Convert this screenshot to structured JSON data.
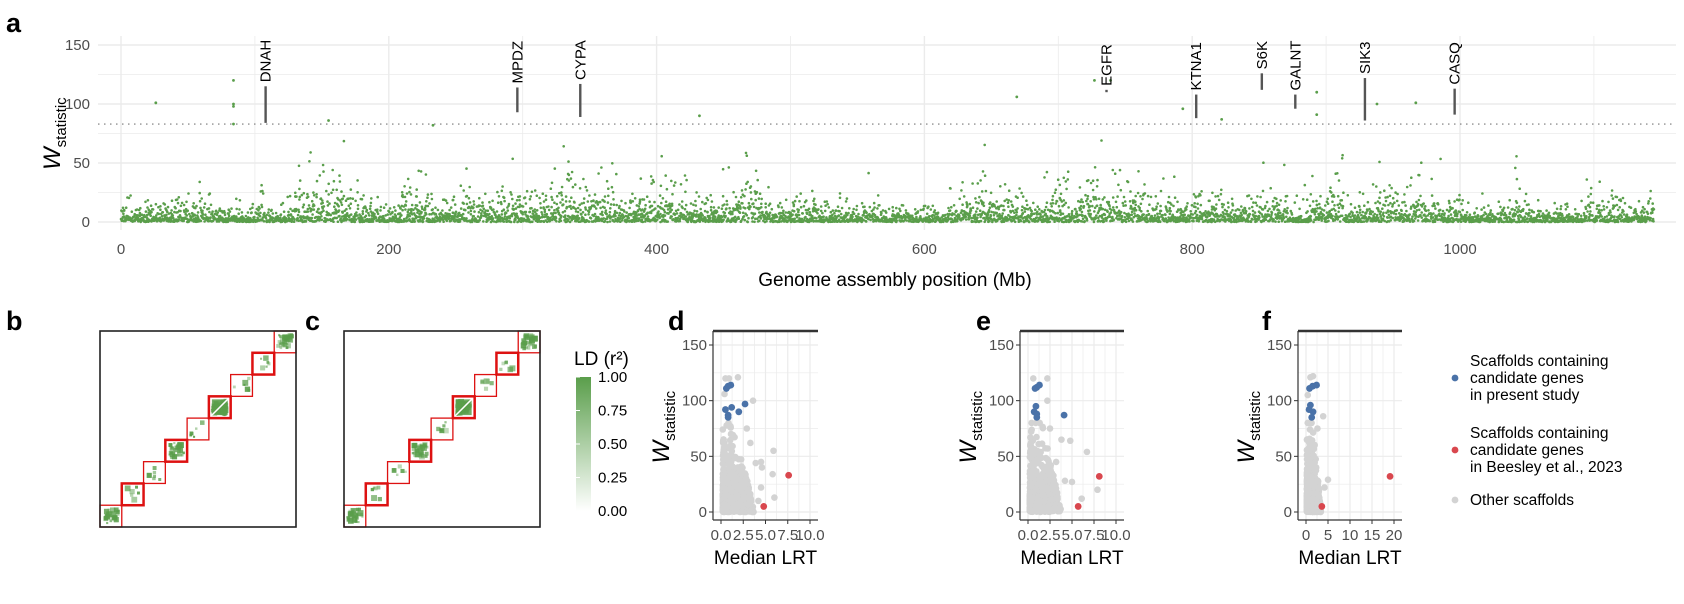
{
  "panel_labels": [
    "a",
    "b",
    "c",
    "d",
    "e",
    "f"
  ],
  "colors": {
    "manhattan": "#5a9e4b",
    "present_study": "#4a72a8",
    "beesley": "#d9474e",
    "other": "#d3d3d3",
    "grid": "#ebebeb",
    "block_border": "#dd1111",
    "ld_high": "#5a9e4b",
    "ld_low": "#ffffff"
  },
  "chart_data": [
    {
      "panel": "a",
      "type": "scatter",
      "xlabel": "Genome assembly position (Mb)",
      "ylabel_main": "W",
      "ylabel_sub": "statistic",
      "xlim": [
        0,
        1145
      ],
      "ylim": [
        0,
        150
      ],
      "xticks": [
        "0",
        "200",
        "400",
        "600",
        "800",
        "1000"
      ],
      "yticks": [
        "0",
        "50",
        "100",
        "150"
      ],
      "threshold": 83,
      "grid": true,
      "bulk_note_free": true,
      "high_points": [
        [
          26,
          101
        ],
        [
          84,
          120
        ],
        [
          84,
          100
        ],
        [
          84,
          98
        ],
        [
          84,
          83
        ],
        [
          155,
          86
        ],
        [
          233,
          82
        ],
        [
          432,
          90
        ],
        [
          669,
          106
        ],
        [
          727,
          120
        ],
        [
          739,
          120
        ],
        [
          793,
          96
        ],
        [
          822,
          87
        ],
        [
          893,
          110
        ],
        [
          893,
          91
        ],
        [
          938,
          100
        ],
        [
          967,
          101
        ]
      ],
      "gene_labels": [
        {
          "label": "DNAH",
          "x": 108,
          "y_from": 84,
          "y_to": 115
        },
        {
          "label": "MPDZ",
          "x": 296,
          "y_from": 93,
          "y_to": 114
        },
        {
          "label": "CYPA",
          "x": 343,
          "y_from": 89,
          "y_to": 117
        },
        {
          "label": "EGFR",
          "x": 736,
          "y_from": 110,
          "y_to": 112
        },
        {
          "label": "KTNA1",
          "x": 803,
          "y_from": 88,
          "y_to": 108
        },
        {
          "label": "S6K",
          "x": 852,
          "y_from": 112,
          "y_to": 126
        },
        {
          "label": "GALNT",
          "x": 877,
          "y_from": 96,
          "y_to": 108
        },
        {
          "label": "SIK3",
          "x": 929,
          "y_from": 86,
          "y_to": 122
        },
        {
          "label": "CASQ",
          "x": 996,
          "y_from": 91,
          "y_to": 113
        }
      ]
    },
    {
      "panel": "b",
      "type": "heatmap",
      "blocks": 9,
      "dense_blocks": [
        1,
        4,
        6,
        9
      ]
    },
    {
      "panel": "c",
      "type": "heatmap",
      "blocks": 9,
      "dense_blocks": [
        1,
        4,
        6,
        9
      ]
    },
    {
      "panel": "d",
      "type": "scatter",
      "xlabel": "Median LRT",
      "ylabel_main": "W",
      "ylabel_sub": "statistic",
      "xlim": [
        0,
        10
      ],
      "ylim": [
        0,
        150
      ],
      "xticks": [
        "0.0",
        "2.5",
        "5.0",
        "7.5",
        "10.0"
      ],
      "yticks": [
        "0",
        "50",
        "100",
        "150"
      ],
      "present_study": [
        [
          0.6,
          111
        ],
        [
          0.8,
          113
        ],
        [
          1.1,
          114
        ],
        [
          0.5,
          92
        ],
        [
          0.8,
          87
        ],
        [
          0.8,
          85
        ],
        [
          1.2,
          94
        ],
        [
          2.0,
          90
        ],
        [
          2.7,
          97
        ]
      ],
      "beesley": [
        [
          7.6,
          33
        ],
        [
          4.8,
          5
        ]
      ],
      "other_outliers": [
        [
          0.5,
          120
        ],
        [
          0.9,
          120
        ],
        [
          1.9,
          121
        ],
        [
          3.6,
          100
        ],
        [
          0.4,
          106
        ],
        [
          5.9,
          55
        ],
        [
          4.5,
          45
        ],
        [
          5.8,
          34
        ],
        [
          4.6,
          40
        ],
        [
          4.5,
          22
        ],
        [
          6.0,
          13
        ],
        [
          4.2,
          10
        ],
        [
          3.3,
          62
        ],
        [
          2.9,
          75
        ],
        [
          3.9,
          44
        ]
      ],
      "other_cloud_max_x": 3.5
    },
    {
      "panel": "e",
      "type": "scatter",
      "xlabel": "Median LRT",
      "ylabel_main": "W",
      "ylabel_sub": "statistic",
      "xlim": [
        0,
        10
      ],
      "ylim": [
        0,
        150
      ],
      "xticks": [
        "0.0",
        "2.5",
        "5.0",
        "7.5",
        "10.0"
      ],
      "yticks": [
        "0",
        "50",
        "100",
        "150"
      ],
      "present_study": [
        [
          0.8,
          111
        ],
        [
          1.0,
          112
        ],
        [
          1.3,
          114
        ],
        [
          0.7,
          90
        ],
        [
          0.9,
          95
        ],
        [
          1.0,
          88
        ],
        [
          1.0,
          85
        ],
        [
          4.1,
          87
        ]
      ],
      "beesley": [
        [
          8.1,
          32
        ],
        [
          5.7,
          5
        ]
      ],
      "other_outliers": [
        [
          0.6,
          120
        ],
        [
          2.2,
          120
        ],
        [
          2.2,
          100
        ],
        [
          6.7,
          54
        ],
        [
          4.8,
          64
        ],
        [
          3.8,
          65
        ],
        [
          7.9,
          20
        ],
        [
          6.1,
          12
        ],
        [
          4.2,
          28
        ],
        [
          5.0,
          27
        ],
        [
          3.2,
          45
        ],
        [
          2.5,
          75
        ]
      ],
      "other_cloud_max_x": 3.6
    },
    {
      "panel": "f",
      "type": "scatter",
      "xlabel": "Median LRT",
      "ylabel_main": "W",
      "ylabel_sub": "statistic",
      "xlim": [
        0,
        20
      ],
      "ylim": [
        0,
        150
      ],
      "xticks": [
        "0",
        "5",
        "10",
        "15",
        "20"
      ],
      "yticks": [
        "0",
        "50",
        "100",
        "150"
      ],
      "present_study": [
        [
          0.8,
          111
        ],
        [
          1.5,
          113
        ],
        [
          2.4,
          114
        ],
        [
          0.7,
          92
        ],
        [
          1.0,
          96
        ],
        [
          1.6,
          90
        ],
        [
          1.3,
          85
        ]
      ],
      "beesley": [
        [
          19.1,
          32
        ],
        [
          3.6,
          5
        ]
      ],
      "other_outliers": [
        [
          1.0,
          121
        ],
        [
          1.6,
          122
        ],
        [
          3.9,
          86
        ],
        [
          0.4,
          105
        ],
        [
          5.0,
          29
        ],
        [
          4.2,
          22
        ],
        [
          2.6,
          75
        ]
      ],
      "other_cloud_max_x": 3.2
    }
  ],
  "ld_legend": {
    "title": "LD (r²)",
    "ticks": [
      "1.00",
      "0.75",
      "0.50",
      "0.25",
      "0.00"
    ]
  },
  "legend": {
    "items": [
      {
        "lines": [
          "Scaffolds containing",
          "candidate genes",
          "in present study"
        ],
        "color_key": "present_study"
      },
      {
        "lines": [
          "Scaffolds containing",
          "candidate genes",
          "in Beesley et al., 2023"
        ],
        "color_key": "beesley"
      },
      {
        "lines": [
          "Other scaffolds"
        ],
        "color_key": "other"
      }
    ]
  }
}
